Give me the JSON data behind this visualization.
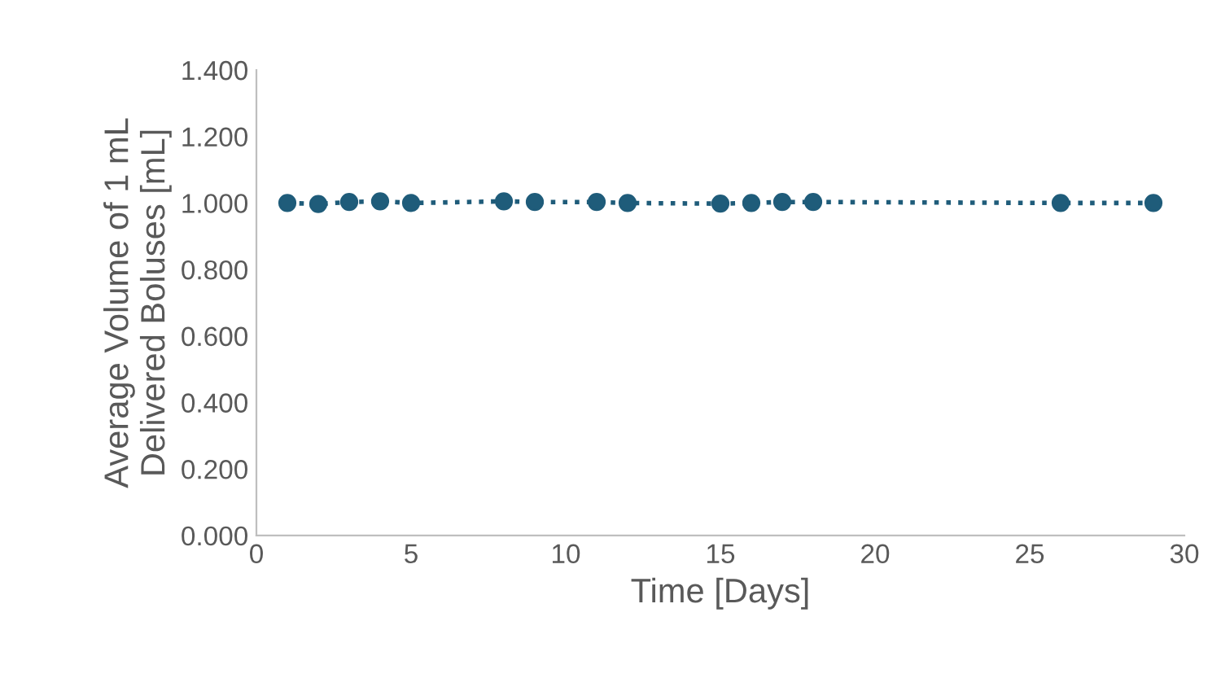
{
  "chart_data": {
    "type": "line",
    "xlabel": "Time [Days]",
    "ylabel": "Average Volume of 1 mL\nDelivered Boluses [mL]",
    "x": [
      1,
      2,
      3,
      4,
      5,
      8,
      9,
      11,
      12,
      15,
      16,
      17,
      18,
      26,
      29
    ],
    "series": [
      {
        "color": "#1f5c7a",
        "values": [
          1.0,
          0.997,
          1.003,
          1.005,
          1.0,
          1.005,
          1.003,
          1.003,
          1.0,
          0.998,
          1.0,
          1.003,
          1.003,
          1.0,
          1.0
        ]
      }
    ],
    "xlim": [
      0,
      30
    ],
    "xticks": [
      0,
      5,
      10,
      15,
      20,
      25,
      30
    ],
    "ylim": [
      0,
      1.4
    ],
    "yticks": [
      {
        "value": 0,
        "label": "0.000"
      },
      {
        "value": 0.2,
        "label": "0.200"
      },
      {
        "value": 0.4,
        "label": "0.400"
      },
      {
        "value": 0.6,
        "label": "0.600"
      },
      {
        "value": 0.8,
        "label": "0.800"
      },
      {
        "value": 1.0,
        "label": "1.000"
      },
      {
        "value": 1.2,
        "label": "1.200"
      },
      {
        "value": 1.4,
        "label": "1.400"
      }
    ],
    "grid": false,
    "legend": false,
    "marker": "circle",
    "line_style": "dotted"
  }
}
